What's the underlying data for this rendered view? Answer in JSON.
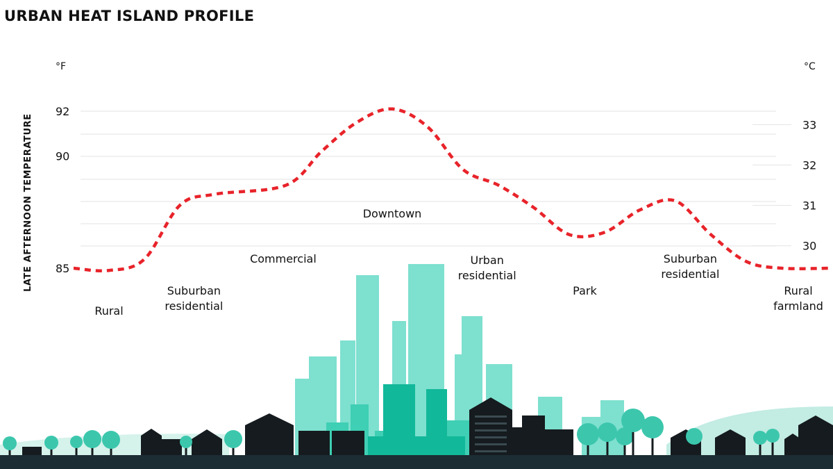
{
  "chart_data": {
    "type": "line",
    "title": "URBAN HEAT ISLAND PROFILE",
    "ylabel": "LATE AFTERNOON TEMPERATURE",
    "left_unit": "°F",
    "right_unit": "°C",
    "left_ticks": [
      85,
      90,
      92
    ],
    "right_ticks": [
      30,
      31,
      32,
      33
    ],
    "ylim_f": [
      85,
      92
    ],
    "grid": true,
    "series": [
      {
        "color": "#e8232a",
        "style": "dashed",
        "points": [
          {
            "x": 0.0,
            "y": 85.0
          },
          {
            "x": 0.5,
            "y": 84.9
          },
          {
            "x": 1.0,
            "y": 85.4
          },
          {
            "x": 1.5,
            "y": 87.8
          },
          {
            "x": 2.0,
            "y": 88.3
          },
          {
            "x": 3.0,
            "y": 88.7
          },
          {
            "x": 3.5,
            "y": 90.2
          },
          {
            "x": 4.0,
            "y": 91.5
          },
          {
            "x": 4.5,
            "y": 92.1
          },
          {
            "x": 5.0,
            "y": 91.3
          },
          {
            "x": 5.5,
            "y": 89.4
          },
          {
            "x": 6.0,
            "y": 88.7
          },
          {
            "x": 6.5,
            "y": 87.7
          },
          {
            "x": 7.0,
            "y": 86.5
          },
          {
            "x": 7.5,
            "y": 86.6
          },
          {
            "x": 8.0,
            "y": 87.6
          },
          {
            "x": 8.5,
            "y": 88.0
          },
          {
            "x": 9.0,
            "y": 86.5
          },
          {
            "x": 9.5,
            "y": 85.3
          },
          {
            "x": 10.0,
            "y": 85.0
          },
          {
            "x": 10.7,
            "y": 85.0
          }
        ]
      }
    ],
    "zones": [
      {
        "lines": [
          "Rural"
        ],
        "x": 0.5,
        "level": 5
      },
      {
        "lines": [
          "Suburban",
          "residential"
        ],
        "x": 1.7,
        "level": 4
      },
      {
        "lines": [
          "Commercial"
        ],
        "x": 2.96,
        "level": 3
      },
      {
        "lines": [
          "Downtown"
        ],
        "x": 4.5,
        "level": 1
      },
      {
        "lines": [
          "Urban",
          "residential"
        ],
        "x": 5.84,
        "level": 2
      },
      {
        "lines": [
          "Park"
        ],
        "x": 7.22,
        "level": 4
      },
      {
        "lines": [
          "Suburban",
          "residential"
        ],
        "x": 8.71,
        "level": 3
      },
      {
        "lines": [
          "Rural",
          "farmland"
        ],
        "x": 10.44,
        "level": 4
      }
    ]
  },
  "colors": {
    "line": "#e8232a",
    "tower_light": "#7ee0cf",
    "tower_mid": "#3fcfb4",
    "tower_dark": "#12b89a",
    "building": "#151b1e",
    "tree": "#3cc7ad",
    "hill": "#c3ece3",
    "ground": "#1c2d33"
  }
}
